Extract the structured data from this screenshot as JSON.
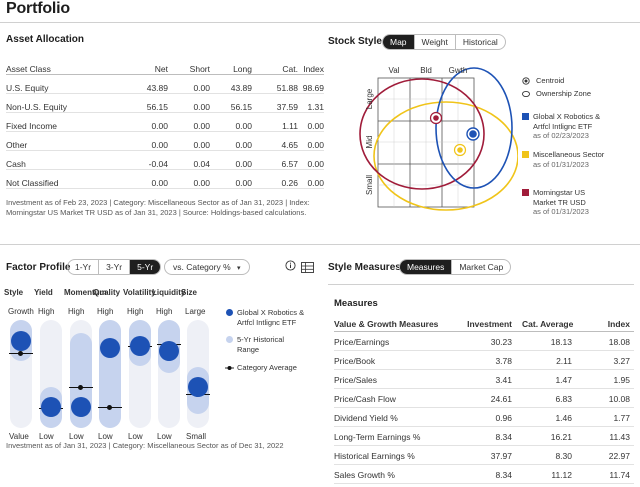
{
  "page": {
    "title": "Portfolio"
  },
  "asset_allocation": {
    "title": "Asset Allocation",
    "columns": [
      "Asset Class",
      "Net",
      "Short",
      "Long",
      "Cat.",
      "Index"
    ],
    "rows": [
      [
        "U.S. Equity",
        "43.89",
        "0.00",
        "43.89",
        "51.88",
        "98.69"
      ],
      [
        "Non-U.S. Equity",
        "56.15",
        "0.00",
        "56.15",
        "37.59",
        "1.31"
      ],
      [
        "Fixed Income",
        "0.00",
        "0.00",
        "0.00",
        "1.11",
        "0.00"
      ],
      [
        "Other",
        "0.00",
        "0.00",
        "0.00",
        "4.65",
        "0.00"
      ],
      [
        "Cash",
        "-0.04",
        "0.04",
        "0.00",
        "6.57",
        "0.00"
      ],
      [
        "Not Classified",
        "0.00",
        "0.00",
        "0.00",
        "0.26",
        "0.00"
      ]
    ],
    "footnote_1": "Investment as of Feb 23, 2023 | Category: Miscellaneous Sector as of Jan 31, 2023 | Index:",
    "footnote_2": "Morningstar US Market TR USD as of Jan 31, 2023 | Source: Holdings-based calculations."
  },
  "stock_style": {
    "title": "Stock Style",
    "tabs": [
      "Map",
      "Weight",
      "Historical"
    ],
    "active_tab": "Map",
    "col_labels": [
      "Val",
      "Bld",
      "Gwth"
    ],
    "row_labels": [
      "Large",
      "Mid",
      "Small"
    ],
    "legend_markers": [
      "Centroid",
      "Ownership Zone"
    ],
    "legend_series": [
      {
        "name_1": "Global X Robotics &",
        "name_2": "Artfcl Intlignc ETF",
        "name_3": "",
        "asof": "as of 02/23/2023",
        "color": "#1d52b5"
      },
      {
        "name_1": "Miscellaneous Sector",
        "name_2": "",
        "name_3": "",
        "asof": "as of 01/31/2023",
        "color": "#f0c419"
      },
      {
        "name_1": "Morningstar US",
        "name_2": "Market TR USD",
        "name_3": "",
        "asof": "as of 01/31/2023",
        "color": "#a01c3a"
      }
    ]
  },
  "factor_profile": {
    "title": "Factor Profile",
    "periods": [
      "1-Yr",
      "3-Yr",
      "5-Yr"
    ],
    "active_period": "5-Yr",
    "compare_dropdown": "vs. Category %",
    "info_icon": "info-icon",
    "table_icon": "table-icon",
    "factors": [
      {
        "name": "Style",
        "top": "Growth",
        "bottom": "Value",
        "value_pct": 88,
        "range": [
          78,
          100
        ],
        "avg_pct": 75
      },
      {
        "name": "Yield",
        "top": "High",
        "bottom": "Low",
        "value_pct": 12,
        "range": [
          0,
          22
        ],
        "avg_pct": 10
      },
      {
        "name": "Momentum",
        "top": "High",
        "bottom": "Low",
        "value_pct": 12,
        "range": [
          0,
          85
        ],
        "avg_pct": 35
      },
      {
        "name": "Quality",
        "top": "High",
        "bottom": "Low",
        "value_pct": 80,
        "range": [
          0,
          100
        ],
        "avg_pct": 12
      },
      {
        "name": "Volatility",
        "top": "High",
        "bottom": "Low",
        "value_pct": 82,
        "range": [
          72,
          100
        ],
        "avg_pct": 82
      },
      {
        "name": "Liquidity",
        "top": "High",
        "bottom": "Low",
        "value_pct": 77,
        "range": [
          64,
          100
        ],
        "avg_pct": 85
      },
      {
        "name": "Size",
        "top": "Large",
        "bottom": "Small",
        "value_pct": 35,
        "range": [
          16,
          45
        ],
        "avg_pct": 27
      }
    ],
    "legend": [
      {
        "l1": "Global X Robotics &",
        "l2": "Artfcl Intlignc ETF"
      },
      {
        "l1": "5-Yr Historical",
        "l2": "Range"
      },
      {
        "l1": "Category Average",
        "l2": ""
      }
    ],
    "footnote": "Investment as of Jan 31, 2023 | Category: Miscellaneous Sector as of Dec 31, 2022"
  },
  "style_measures": {
    "title": "Style Measures",
    "tabs": [
      "Measures",
      "Market Cap"
    ],
    "active_tab": "Measures",
    "subtitle": "Measures",
    "columns": [
      "Value & Growth Measures",
      "Investment",
      "Cat. Average",
      "Index"
    ],
    "rows": [
      [
        "Price/Earnings",
        "30.23",
        "18.13",
        "18.08"
      ],
      [
        "Price/Book",
        "3.78",
        "2.11",
        "3.27"
      ],
      [
        "Price/Sales",
        "3.41",
        "1.47",
        "1.95"
      ],
      [
        "Price/Cash Flow",
        "24.61",
        "6.83",
        "10.08"
      ],
      [
        "Dividend Yield %",
        "0.96",
        "1.46",
        "1.77"
      ],
      [
        "Long-Term Earnings %",
        "8.34",
        "16.21",
        "11.43"
      ],
      [
        "Historical Earnings %",
        "37.97",
        "8.30",
        "22.97"
      ],
      [
        "Sales Growth %",
        "8.34",
        "11.12",
        "11.74"
      ]
    ]
  }
}
